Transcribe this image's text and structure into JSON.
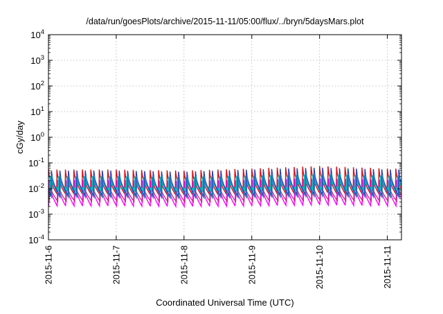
{
  "chart_data": {
    "type": "line",
    "title": "/data/run/goesPlots/archive/2015-11-11/05:00/flux/../bryn/5daysMars.plot",
    "xlabel": "Coordinated Universal Time (UTC)",
    "ylabel": "cGy/day",
    "yscale": "log",
    "ylim": [
      0.0001,
      10000
    ],
    "y_ticks": [
      {
        "value": 0.0001,
        "base": "10",
        "exp": "-4"
      },
      {
        "value": 0.001,
        "base": "10",
        "exp": "-3"
      },
      {
        "value": 0.01,
        "base": "10",
        "exp": "-2"
      },
      {
        "value": 0.1,
        "base": "10",
        "exp": "-1"
      },
      {
        "value": 1,
        "base": "10",
        "exp": "0"
      },
      {
        "value": 10,
        "base": "10",
        "exp": "1"
      },
      {
        "value": 100,
        "base": "10",
        "exp": "2"
      },
      {
        "value": 1000,
        "base": "10",
        "exp": "3"
      },
      {
        "value": 10000,
        "base": "10",
        "exp": "4"
      }
    ],
    "xlim": [
      "2015-11-06T00:00",
      "2015-11-11T05:00"
    ],
    "x_ticks": [
      "2015-11-6",
      "2015-11-7",
      "2015-11-8",
      "2015-11-9",
      "2015-11-10",
      "2015-11-11"
    ],
    "grid": true,
    "sawtooth_period_hours": 3,
    "series": [
      {
        "color": "#e01010",
        "peak": [
          0.055,
          0.055,
          0.05,
          0.06,
          0.075,
          0.06
        ],
        "trough": [
          0.0065,
          0.0065,
          0.006,
          0.0065,
          0.007,
          0.0065
        ]
      },
      {
        "color": "#ff00ff",
        "peak": [
          0.022,
          0.022,
          0.02,
          0.022,
          0.025,
          0.022
        ],
        "trough": [
          0.0021,
          0.0021,
          0.002,
          0.0021,
          0.0023,
          0.0021
        ]
      },
      {
        "color": "#c03080",
        "peak": [
          0.018,
          0.018,
          0.017,
          0.018,
          0.02,
          0.018
        ],
        "trough": [
          0.0032,
          0.0032,
          0.003,
          0.0032,
          0.0034,
          0.0032
        ]
      },
      {
        "color": "#00cccc",
        "peak": [
          0.03,
          0.03,
          0.028,
          0.032,
          0.036,
          0.032
        ],
        "trough": [
          0.0085,
          0.0085,
          0.008,
          0.0085,
          0.009,
          0.0085
        ]
      },
      {
        "color": "#00c8a0",
        "peak": [
          0.02,
          0.02,
          0.019,
          0.021,
          0.023,
          0.021
        ],
        "trough": [
          0.0095,
          0.0095,
          0.009,
          0.0095,
          0.01,
          0.0095
        ]
      },
      {
        "color": "#1f3fbf",
        "peak": [
          0.05,
          0.05,
          0.045,
          0.055,
          0.065,
          0.055
        ],
        "trough": [
          0.0055,
          0.0055,
          0.005,
          0.0055,
          0.006,
          0.0055
        ]
      },
      {
        "color": "#2e7fbf",
        "peak": [
          0.032,
          0.032,
          0.03,
          0.034,
          0.04,
          0.034
        ],
        "trough": [
          0.0045,
          0.0045,
          0.0042,
          0.0045,
          0.005,
          0.0045
        ]
      }
    ]
  }
}
